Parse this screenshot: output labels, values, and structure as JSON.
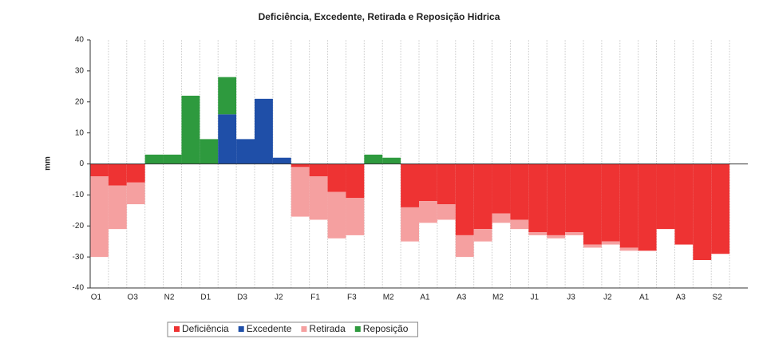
{
  "chart_data": {
    "type": "stacked_bar",
    "title": "Deficiência, Excedente, Retirada e Reposição Hidrica",
    "y_label": "mm",
    "categories": [
      "O1",
      null,
      "O3",
      null,
      "N2",
      null,
      "D1",
      null,
      "D3",
      null,
      "J2",
      null,
      "F1",
      null,
      "F3",
      null,
      "M2",
      null,
      "A1",
      null,
      "A3",
      null,
      "M2",
      null,
      "J1",
      null,
      "J3",
      null,
      "J2",
      null,
      "A1",
      null,
      "A3",
      null,
      "S2",
      null
    ],
    "series": [
      {
        "name": "Deficiência",
        "color": "#ee3333",
        "values": [
          -4,
          -7,
          -6,
          0,
          0,
          0,
          0,
          0,
          0,
          0,
          0,
          -1,
          -4,
          -9,
          -11,
          0,
          0,
          -14,
          -12,
          -13,
          -23,
          -21,
          -16,
          -18,
          -22,
          -23,
          -22,
          -26,
          -25,
          -27,
          -28,
          -21,
          -26,
          -31,
          -29,
          0
        ]
      },
      {
        "name": "Excedente",
        "color": "#1f4fa8",
        "values": [
          0,
          0,
          0,
          0,
          0,
          0,
          0,
          16,
          8,
          21,
          2,
          0,
          0,
          0,
          0,
          0,
          0,
          0,
          0,
          0,
          0,
          0,
          0,
          0,
          0,
          0,
          0,
          0,
          0,
          0,
          0,
          0,
          0,
          0,
          0,
          0
        ]
      },
      {
        "name": "Retirada",
        "color": "#f5a0a0",
        "values": [
          -26,
          -14,
          -7,
          0,
          0,
          0,
          0,
          0,
          0,
          0,
          0,
          -16,
          -14,
          -15,
          -12,
          0,
          0,
          -11,
          -7,
          -5,
          -7,
          -4,
          -3,
          -3,
          -1,
          -1,
          -1,
          -1,
          -1,
          -1,
          0,
          0,
          0,
          0,
          0,
          0
        ]
      },
      {
        "name": "Reposição",
        "color": "#2e9a3e",
        "values": [
          0,
          0,
          0,
          3,
          3,
          22,
          8,
          12,
          0,
          0,
          0,
          0,
          0,
          0,
          0,
          3,
          2,
          0,
          0,
          0,
          0,
          0,
          0,
          0,
          0,
          0,
          0,
          0,
          0,
          0,
          0,
          0,
          0,
          0,
          0,
          0
        ]
      }
    ],
    "ylim": [
      -40,
      40
    ],
    "yticks": [
      -40,
      -30,
      -20,
      -10,
      0,
      10,
      20,
      30,
      40
    ],
    "grid": true,
    "legend": "bottom"
  }
}
